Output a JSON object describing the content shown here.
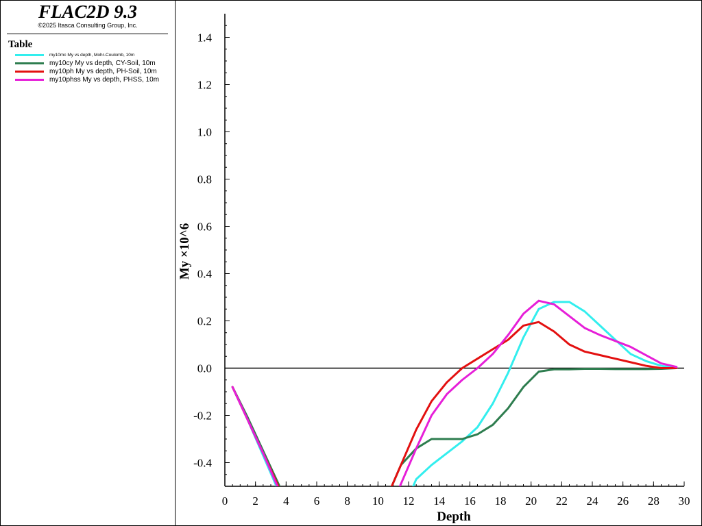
{
  "app": {
    "title": "FLAC2D 9.3",
    "copyright": "©2025 Itasca Consulting Group, Inc."
  },
  "legend": {
    "heading": "Table",
    "items": [
      {
        "label": "my10mc My vs depth, Mohr-Coulomb, 10m",
        "color": "#33eeee"
      },
      {
        "label": "my10cy My vs depth, CY-Soil, 10m",
        "color": "#2e7d4f"
      },
      {
        "label": "my10ph My vs depth, PH-Soil, 10m",
        "color": "#e31010"
      },
      {
        "label": "my10phss My vs depth, PHSS, 10m",
        "color": "#e61fd8"
      }
    ]
  },
  "chart_data": {
    "type": "line",
    "title": "",
    "xlabel": "Depth",
    "ylabel": "My ×10^6",
    "xlim": [
      0,
      30
    ],
    "ylim": [
      -0.5,
      1.5
    ],
    "x_ticks": [
      0,
      2,
      4,
      6,
      8,
      10,
      12,
      14,
      16,
      18,
      20,
      22,
      24,
      26,
      28,
      30
    ],
    "y_ticks": [
      -0.4,
      -0.2,
      0.0,
      0.2,
      0.4,
      0.6,
      0.8,
      1.0,
      1.2,
      1.4
    ],
    "y_tick_labels": [
      "-0.4",
      "-0.2",
      "0.0",
      "0.2",
      "0.4",
      "0.6",
      "0.8",
      "1.0",
      "1.2",
      "1.4"
    ],
    "zero_line": true,
    "grid": false,
    "series": [
      {
        "name": "my10mc My vs depth, Mohr-Coulomb, 10m",
        "color": "#33eeee",
        "points": [
          [
            0.5,
            -0.08
          ],
          [
            1.5,
            -0.22
          ],
          [
            2.5,
            -0.37
          ],
          [
            3.5,
            -0.52
          ],
          [
            4.5,
            -0.67
          ],
          [
            11.5,
            -0.62
          ],
          [
            12.5,
            -0.47
          ],
          [
            13.5,
            -0.41
          ],
          [
            14.5,
            -0.36
          ],
          [
            15.5,
            -0.31
          ],
          [
            16.5,
            -0.25
          ],
          [
            17.5,
            -0.15
          ],
          [
            18.5,
            -0.02
          ],
          [
            19.5,
            0.13
          ],
          [
            20.5,
            0.25
          ],
          [
            21.5,
            0.28
          ],
          [
            22.5,
            0.28
          ],
          [
            23.5,
            0.24
          ],
          [
            24.5,
            0.18
          ],
          [
            25.5,
            0.12
          ],
          [
            26.5,
            0.06
          ],
          [
            27.5,
            0.03
          ],
          [
            28.5,
            0.01
          ],
          [
            29.5,
            0.0
          ]
        ]
      },
      {
        "name": "my10cy My vs depth, CY-Soil, 10m",
        "color": "#2e7d4f",
        "points": [
          [
            0.5,
            -0.08
          ],
          [
            1.5,
            -0.21
          ],
          [
            2.5,
            -0.35
          ],
          [
            3.5,
            -0.49
          ],
          [
            4.5,
            -0.63
          ],
          [
            10.5,
            -0.56
          ],
          [
            11.5,
            -0.41
          ],
          [
            12.5,
            -0.34
          ],
          [
            13.5,
            -0.3
          ],
          [
            14.5,
            -0.3
          ],
          [
            15.5,
            -0.3
          ],
          [
            16.5,
            -0.28
          ],
          [
            17.5,
            -0.24
          ],
          [
            18.5,
            -0.17
          ],
          [
            19.5,
            -0.08
          ],
          [
            20.5,
            -0.015
          ],
          [
            21.5,
            -0.005
          ],
          [
            22.5,
            -0.005
          ],
          [
            23.5,
            -0.003
          ],
          [
            24.5,
            -0.003
          ],
          [
            25.5,
            -0.004
          ],
          [
            26.5,
            -0.004
          ],
          [
            27.5,
            -0.004
          ],
          [
            28.5,
            -0.003
          ],
          [
            29.5,
            0.0
          ]
        ]
      },
      {
        "name": "my10ph My vs depth, PH-Soil, 10m",
        "color": "#e31010",
        "points": [
          [
            0.5,
            -0.08
          ],
          [
            1.5,
            -0.22
          ],
          [
            2.5,
            -0.36
          ],
          [
            3.5,
            -0.5
          ],
          [
            4.5,
            -0.64
          ],
          [
            10.5,
            -0.56
          ],
          [
            11.5,
            -0.41
          ],
          [
            12.5,
            -0.26
          ],
          [
            13.5,
            -0.14
          ],
          [
            14.5,
            -0.06
          ],
          [
            15.5,
            0.0
          ],
          [
            16.5,
            0.04
          ],
          [
            17.5,
            0.08
          ],
          [
            18.5,
            0.12
          ],
          [
            19.5,
            0.18
          ],
          [
            20.5,
            0.195
          ],
          [
            21.5,
            0.155
          ],
          [
            22.5,
            0.1
          ],
          [
            23.5,
            0.07
          ],
          [
            24.5,
            0.055
          ],
          [
            25.5,
            0.04
          ],
          [
            26.5,
            0.025
          ],
          [
            27.5,
            0.01
          ],
          [
            28.5,
            0.0
          ],
          [
            29.5,
            0.0
          ]
        ]
      },
      {
        "name": "my10phss My vs depth, PHSS, 10m",
        "color": "#e61fd8",
        "points": [
          [
            0.5,
            -0.08
          ],
          [
            1.5,
            -0.22
          ],
          [
            2.5,
            -0.36
          ],
          [
            3.5,
            -0.51
          ],
          [
            4.5,
            -0.66
          ],
          [
            10.5,
            -0.64
          ],
          [
            11.5,
            -0.49
          ],
          [
            12.5,
            -0.34
          ],
          [
            13.5,
            -0.2
          ],
          [
            14.5,
            -0.11
          ],
          [
            15.5,
            -0.05
          ],
          [
            16.5,
            0.0
          ],
          [
            17.5,
            0.06
          ],
          [
            18.5,
            0.14
          ],
          [
            19.5,
            0.23
          ],
          [
            20.5,
            0.285
          ],
          [
            21.5,
            0.27
          ],
          [
            22.5,
            0.22
          ],
          [
            23.5,
            0.17
          ],
          [
            24.5,
            0.14
          ],
          [
            25.5,
            0.115
          ],
          [
            26.5,
            0.09
          ],
          [
            27.5,
            0.055
          ],
          [
            28.5,
            0.02
          ],
          [
            29.5,
            0.005
          ]
        ]
      }
    ]
  }
}
